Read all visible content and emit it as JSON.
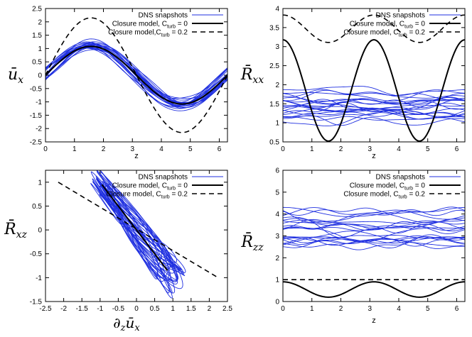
{
  "chart_data": [
    {
      "id": "ux",
      "type": "line",
      "ylabel_main": "ū",
      "ylabel_sub": "x",
      "xlabel": "z",
      "xlim": [
        0,
        6.283
      ],
      "ylim": [
        -2.5,
        2.5
      ],
      "xticks": [
        0,
        1,
        2,
        3,
        4,
        5,
        6
      ],
      "yticks": [
        -2.5,
        -2,
        -1.5,
        -1,
        -0.5,
        0,
        0.5,
        1,
        1.5,
        2,
        2.5
      ],
      "legend": [
        "DNS snapshots",
        "Closure model, C",
        "Closure model,C"
      ],
      "legend_sub": [
        "turb",
        "turb"
      ],
      "legend_suffix": [
        " = 0",
        " = 0.2"
      ],
      "series": [
        {
          "name": "DNS snapshots",
          "style": "blue",
          "kind": "sine_family",
          "amp": 1.1,
          "offset": 0.0,
          "count": 22,
          "spread": 0.25
        },
        {
          "name": "Closure model, Cturb = 0",
          "style": "solid",
          "kind": "sine",
          "amp": 1.08,
          "offset": 0.0,
          "freq": 1
        },
        {
          "name": "Closure model, Cturb = 0.2",
          "style": "dashed",
          "kind": "sine",
          "amp": 2.15,
          "offset": 0.0,
          "freq": 1
        }
      ]
    },
    {
      "id": "rxx",
      "type": "line",
      "ylabel_main": "R̄",
      "ylabel_sub": "xx",
      "xlabel": "z",
      "xlim": [
        0,
        6.283
      ],
      "ylim": [
        0.5,
        4.0
      ],
      "xticks": [
        0,
        1,
        2,
        3,
        4,
        5,
        6
      ],
      "yticks": [
        0.5,
        1,
        1.5,
        2,
        2.5,
        3,
        3.5,
        4
      ],
      "legend": [
        "DNS snapshots",
        "Closure model, C",
        "Closure model, C"
      ],
      "legend_sub": [
        "turb",
        "turb"
      ],
      "legend_suffix": [
        " = 0",
        " = 0.2"
      ],
      "series": [
        {
          "name": "DNS snapshots",
          "style": "blue",
          "kind": "noise_family",
          "mean": 1.45,
          "spread": 0.45,
          "count": 22
        },
        {
          "name": "Closure model, Cturb = 0",
          "style": "solid",
          "kind": "cos2",
          "mean": 1.85,
          "amp": 1.33
        },
        {
          "name": "Closure model, Cturb = 0.2",
          "style": "dashed",
          "kind": "cos2",
          "mean": 3.47,
          "amp": 0.36
        }
      ]
    },
    {
      "id": "rxz",
      "type": "scatter",
      "ylabel_main": "R̄",
      "ylabel_sub": "xz",
      "xlabel_main": "∂",
      "xlabel_sub1": "z",
      "xlabel_mid": "ū",
      "xlabel_sub2": "x",
      "xlim": [
        -2.5,
        2.5
      ],
      "ylim": [
        -1.5,
        1.25
      ],
      "xticks": [
        -2.5,
        -2,
        -1.5,
        -1,
        -0.5,
        0,
        0.5,
        1,
        1.5,
        2,
        2.5
      ],
      "yticks": [
        -1.5,
        -1,
        -0.5,
        0,
        0.5,
        1
      ],
      "legend": [
        "DNS snapshots",
        "Closure model, C",
        "Closure model, C"
      ],
      "legend_sub": [
        "turb",
        "turb"
      ],
      "legend_suffix": [
        " = 0",
        " = 0.2"
      ],
      "series": [
        {
          "name": "DNS snapshots",
          "style": "blue",
          "kind": "loop_family",
          "count": 22
        },
        {
          "name": "Closure model, Cturb = 0",
          "style": "solid",
          "kind": "segment",
          "x": [
            -0.95,
            0.85
          ],
          "y": [
            0.95,
            -0.85
          ]
        },
        {
          "name": "Closure model, Cturb = 0.2",
          "style": "dashed",
          "kind": "segment",
          "x": [
            -2.15,
            2.2
          ],
          "y": [
            1.0,
            -0.98
          ]
        }
      ]
    },
    {
      "id": "rzz",
      "type": "line",
      "ylabel_main": "R̄",
      "ylabel_sub": "zz",
      "xlabel": "z",
      "xlim": [
        0,
        6.283
      ],
      "ylim": [
        0,
        6
      ],
      "xticks": [
        0,
        1,
        2,
        3,
        4,
        5,
        6
      ],
      "yticks": [
        0,
        1,
        2,
        3,
        4,
        5,
        6
      ],
      "legend": [
        "DNS snapshots",
        "Closure model, C",
        "Closure model, C"
      ],
      "legend_sub": [
        "turb",
        "turb"
      ],
      "legend_suffix": [
        " = 0",
        " = 0.2"
      ],
      "series": [
        {
          "name": "DNS snapshots",
          "style": "blue",
          "kind": "noise_family",
          "mean": 3.4,
          "spread": 0.8,
          "count": 22
        },
        {
          "name": "Closure model, Cturb = 0",
          "style": "solid",
          "kind": "cos2",
          "mean": 0.55,
          "amp": 0.35
        },
        {
          "name": "Closure model, Cturb = 0.2",
          "style": "dashed",
          "kind": "const",
          "value": 1.0
        }
      ]
    }
  ],
  "colors": {
    "blue": "#1f2fe0",
    "black": "#000000"
  }
}
